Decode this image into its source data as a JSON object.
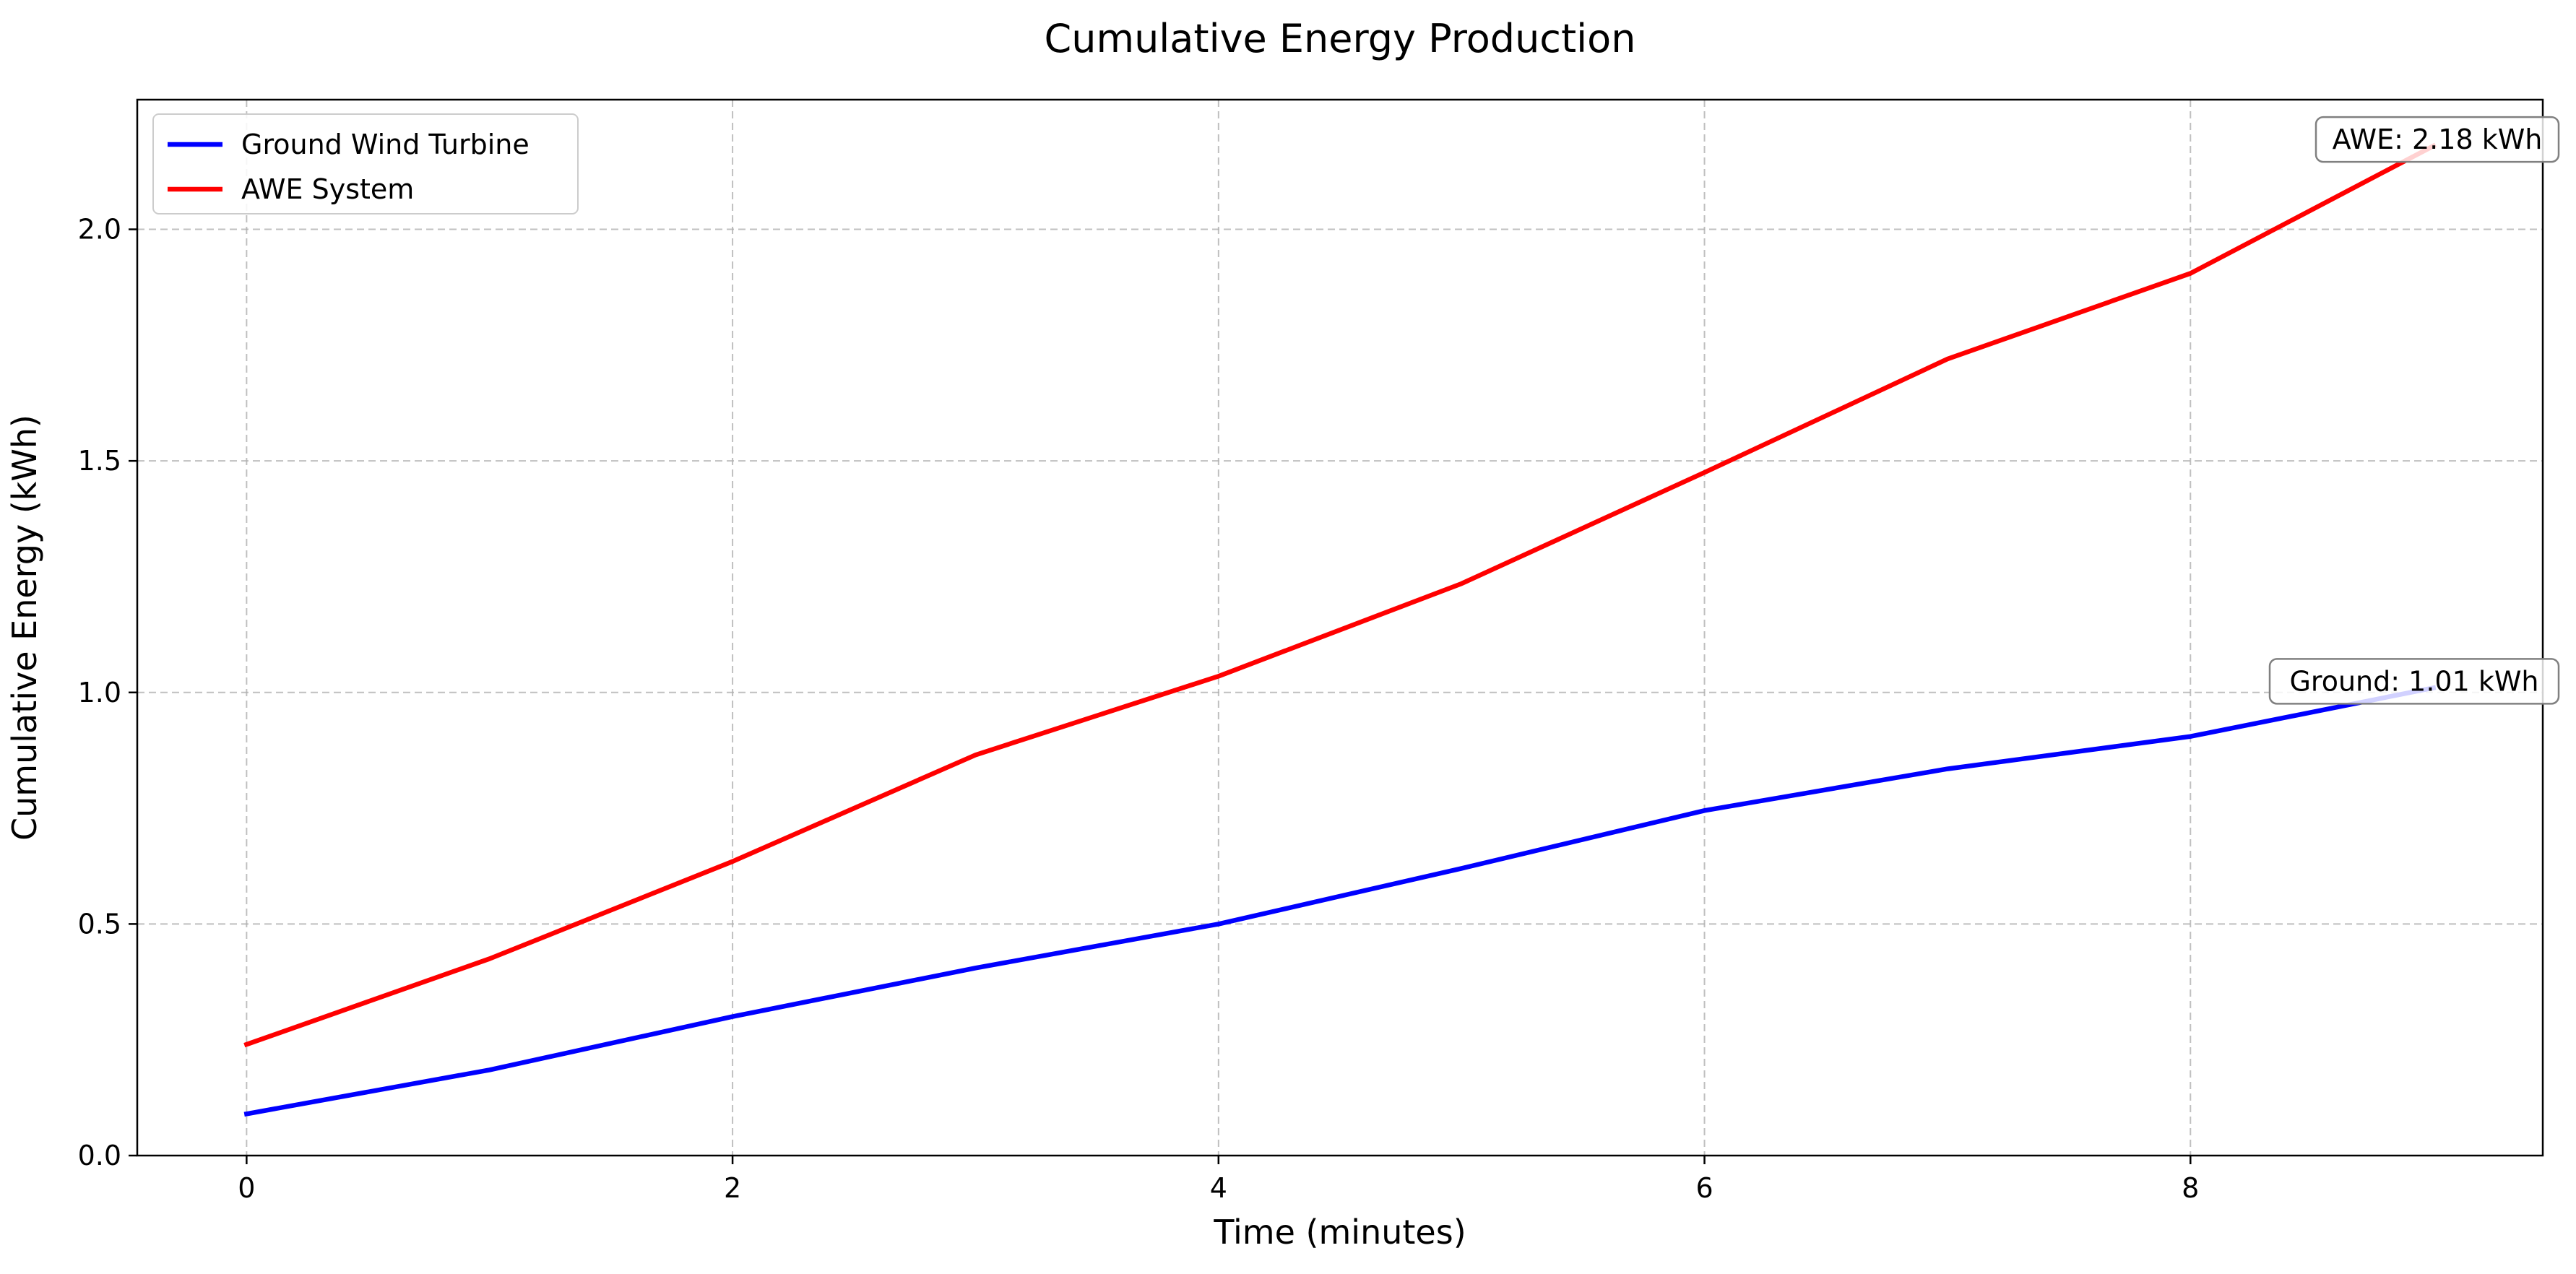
{
  "chart_data": {
    "type": "line",
    "title": "Cumulative Energy Production",
    "xlabel": "Time (minutes)",
    "ylabel": "Cumulative Energy (kWh)",
    "x": [
      0,
      1,
      2,
      3,
      4,
      5,
      6,
      7,
      8,
      9
    ],
    "xlim": [
      -0.45,
      9.45
    ],
    "ylim": [
      0,
      2.28
    ],
    "xticks": [
      "0",
      "2",
      "4",
      "6",
      "8"
    ],
    "yticks": [
      "0.0",
      "0.5",
      "1.0",
      "1.5",
      "2.0"
    ],
    "grid": true,
    "grid_style": "dashed",
    "legend_position": "top-left",
    "series": [
      {
        "name": "Ground Wind Turbine",
        "color": "#0000ff",
        "values": [
          0.09,
          0.185,
          0.3,
          0.405,
          0.5,
          0.62,
          0.745,
          0.835,
          0.905,
          1.01
        ]
      },
      {
        "name": "AWE System",
        "color": "#ff0000",
        "values": [
          0.24,
          0.425,
          0.635,
          0.865,
          1.035,
          1.235,
          1.475,
          1.72,
          1.905,
          2.18
        ]
      }
    ],
    "annotations": [
      {
        "text": "AWE: 2.18 kWh",
        "series": "AWE System",
        "x": 9,
        "y": 2.18
      },
      {
        "text": "Ground: 1.01 kWh",
        "series": "Ground Wind Turbine",
        "x": 9,
        "y": 1.01
      }
    ]
  }
}
